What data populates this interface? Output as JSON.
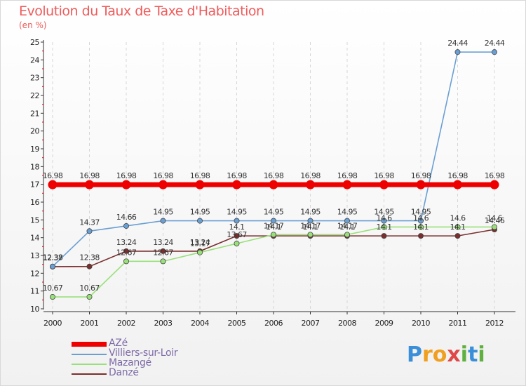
{
  "title": "Evolution du Taux de Taxe d'Habitation",
  "unit": "(en %)",
  "logo": {
    "letters": [
      "P",
      "r",
      "o",
      "x",
      "i",
      "t",
      "i"
    ],
    "colors": [
      "#3a8fd8",
      "#f0a020",
      "#f0a020",
      "#e04848",
      "#60b040",
      "#3a8fd8",
      "#60b040"
    ]
  },
  "chart_data": {
    "type": "line",
    "categories": [
      "2000",
      "2001",
      "2002",
      "2003",
      "2004",
      "2005",
      "2006",
      "2007",
      "2008",
      "2009",
      "2010",
      "2011",
      "2012"
    ],
    "ylim": [
      10,
      25
    ],
    "yticks": [
      "10",
      "11",
      "12",
      "13",
      "14",
      "15",
      "16",
      "17",
      "18",
      "19",
      "20",
      "21",
      "22",
      "23",
      "24",
      "25"
    ],
    "grid": "vertical dashed",
    "legend_position": "bottom-left",
    "series": [
      {
        "name": "AZé",
        "color": "#ee0000",
        "values": [
          16.98,
          16.98,
          16.98,
          16.98,
          16.98,
          16.98,
          16.98,
          16.98,
          16.98,
          16.98,
          16.98,
          16.98,
          16.98
        ],
        "labels": [
          "16.98",
          "16.98",
          "16.98",
          "16.98",
          "16.98",
          "16.98",
          "16.98",
          "16.98",
          "16.98",
          "16.98",
          "16.98",
          "16.98",
          "16.98"
        ]
      },
      {
        "name": "Villiers-sur-Loir",
        "color": "#6a9fd4",
        "values": [
          12.38,
          14.37,
          14.66,
          14.95,
          14.95,
          14.95,
          14.95,
          14.95,
          14.95,
          14.95,
          14.95,
          24.44,
          24.44
        ],
        "labels": [
          "12.38",
          "14.37",
          "14.66",
          "14.95",
          "14.95",
          "14.95",
          "14.95",
          "14.95",
          "14.95",
          "14.95",
          "14.95",
          "24.44",
          "24.44"
        ]
      },
      {
        "name": "Mazangé",
        "color": "#99e07a",
        "values": [
          10.67,
          10.67,
          12.67,
          12.67,
          13.17,
          13.67,
          14.17,
          14.17,
          14.17,
          14.6,
          14.6,
          14.6,
          14.6
        ],
        "labels": [
          "10.67",
          "10.67",
          "12.67",
          "12.67",
          "13.17",
          "13.67",
          "14.17",
          "14.17",
          "14.17",
          "14.6",
          "14.6",
          "14.6",
          "14.6"
        ]
      },
      {
        "name": "Danzé",
        "color": "#7a2e2e",
        "values": [
          12.37,
          12.38,
          13.24,
          13.24,
          13.24,
          14.1,
          14.1,
          14.1,
          14.1,
          14.1,
          14.1,
          14.1,
          14.46
        ],
        "labels": [
          "12.37",
          "12.38",
          "13.24",
          "13.24",
          "13.24",
          "14.1",
          "14.1",
          "14.1",
          "14.1",
          "14.1",
          "14.1",
          "14.1",
          "14.46"
        ]
      }
    ]
  }
}
